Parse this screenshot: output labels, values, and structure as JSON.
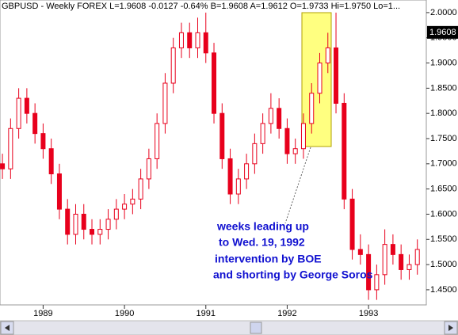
{
  "chart_data": {
    "type": "candlestick",
    "header": "GBPUSD - Weekly  FOREX  L=1.9608  -0.0127  -0.64%  B=1.9608  A=1.9612  O=1.9733  Hi=1.9750  Lo=1...",
    "last_price": {
      "value": 1.9608,
      "label": "1.9608"
    },
    "annotation": [
      "weeks leading up",
      "to Wed. 19, 1992",
      "intervention by BOE",
      "and shorting by George Soros"
    ],
    "color": "#e8001c",
    "x": [
      1988.5,
      1988.6,
      1988.7,
      1988.8,
      1988.9,
      1989.0,
      1989.1,
      1989.2,
      1989.3,
      1989.4,
      1989.5,
      1989.6,
      1989.7,
      1989.8,
      1989.9,
      1990.0,
      1990.1,
      1990.2,
      1990.3,
      1990.4,
      1990.5,
      1990.6,
      1990.7,
      1990.8,
      1990.9,
      1991.0,
      1991.1,
      1991.2,
      1991.3,
      1991.4,
      1991.5,
      1991.6,
      1991.7,
      1991.8,
      1991.9,
      1992.0,
      1992.1,
      1992.2,
      1992.3,
      1992.4,
      1992.5,
      1992.6,
      1992.7,
      1992.8,
      1992.9,
      1993.0,
      1993.1,
      1993.2,
      1993.3,
      1993.4,
      1993.5,
      1993.6
    ],
    "open": [
      1.7,
      1.69,
      1.77,
      1.83,
      1.8,
      1.76,
      1.73,
      1.68,
      1.61,
      1.56,
      1.6,
      1.57,
      1.56,
      1.57,
      1.59,
      1.61,
      1.62,
      1.63,
      1.67,
      1.71,
      1.78,
      1.86,
      1.93,
      1.96,
      1.93,
      1.96,
      1.92,
      1.8,
      1.71,
      1.64,
      1.67,
      1.7,
      1.74,
      1.78,
      1.81,
      1.77,
      1.72,
      1.73,
      1.78,
      1.84,
      1.9,
      1.93,
      1.82,
      1.63,
      1.53,
      1.52,
      1.45,
      1.48,
      1.54,
      1.52,
      1.49,
      1.5
    ],
    "high": [
      1.72,
      1.79,
      1.85,
      1.85,
      1.82,
      1.78,
      1.75,
      1.7,
      1.63,
      1.62,
      1.62,
      1.59,
      1.59,
      1.61,
      1.63,
      1.64,
      1.65,
      1.69,
      1.73,
      1.8,
      1.88,
      1.95,
      1.98,
      1.98,
      1.99,
      2.0,
      1.94,
      1.82,
      1.73,
      1.69,
      1.72,
      1.76,
      1.8,
      1.84,
      1.83,
      1.79,
      1.75,
      1.8,
      1.86,
      1.92,
      1.96,
      2.0,
      1.84,
      1.65,
      1.56,
      1.54,
      1.5,
      1.57,
      1.56,
      1.54,
      1.52,
      1.55
    ],
    "low": [
      1.67,
      1.67,
      1.75,
      1.78,
      1.74,
      1.71,
      1.66,
      1.59,
      1.54,
      1.54,
      1.55,
      1.54,
      1.54,
      1.55,
      1.57,
      1.59,
      1.6,
      1.61,
      1.65,
      1.69,
      1.76,
      1.84,
      1.91,
      1.91,
      1.91,
      1.9,
      1.78,
      1.69,
      1.62,
      1.62,
      1.65,
      1.68,
      1.72,
      1.76,
      1.75,
      1.7,
      1.7,
      1.71,
      1.76,
      1.82,
      1.88,
      1.8,
      1.61,
      1.51,
      1.5,
      1.43,
      1.43,
      1.46,
      1.5,
      1.47,
      1.47,
      1.48
    ],
    "close": [
      1.69,
      1.77,
      1.83,
      1.8,
      1.76,
      1.73,
      1.68,
      1.61,
      1.56,
      1.6,
      1.57,
      1.56,
      1.57,
      1.59,
      1.61,
      1.62,
      1.63,
      1.67,
      1.71,
      1.78,
      1.86,
      1.93,
      1.96,
      1.93,
      1.96,
      1.92,
      1.8,
      1.71,
      1.64,
      1.67,
      1.7,
      1.74,
      1.78,
      1.81,
      1.77,
      1.72,
      1.73,
      1.78,
      1.84,
      1.9,
      1.93,
      1.82,
      1.63,
      1.53,
      1.52,
      1.45,
      1.48,
      1.54,
      1.52,
      1.49,
      1.5,
      1.53
    ],
    "xlim": [
      1988.47,
      1993.71
    ],
    "xticks": [
      1989,
      1990,
      1991,
      1992,
      1993
    ],
    "ylim": [
      1.42,
      2.025
    ],
    "yticks": [
      {
        "value": 2.0,
        "label": "2.0000"
      },
      {
        "value": 1.95,
        "label": "1.9500"
      },
      {
        "value": 1.9,
        "label": "1.9000"
      },
      {
        "value": 1.85,
        "label": "1.8500"
      },
      {
        "value": 1.8,
        "label": "1.8000"
      },
      {
        "value": 1.75,
        "label": "1.7500"
      },
      {
        "value": 1.7,
        "label": "1.7000"
      },
      {
        "value": 1.65,
        "label": "1.6500"
      },
      {
        "value": 1.6,
        "label": "1.6000"
      },
      {
        "value": 1.55,
        "label": "1.5500"
      },
      {
        "value": 1.5,
        "label": "1.5000"
      },
      {
        "value": 1.45,
        "label": "1.4500"
      }
    ],
    "grid": false
  }
}
